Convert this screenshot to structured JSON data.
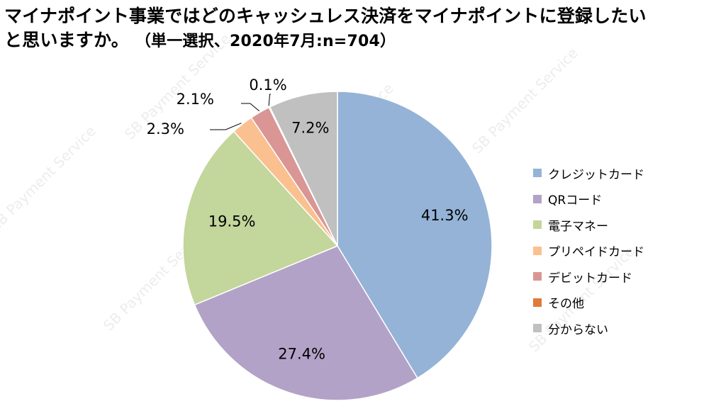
{
  "title": {
    "line1": "マイナポイント事業ではどのキャッシュレス決済をマイナポイントに登録したい",
    "line2": "と思いますか。",
    "note": "（単一選択、2020年7月:n=704）"
  },
  "watermark": "SB Payment Service",
  "chart_data": {
    "type": "pie",
    "title": "マイナポイント事業ではどのキャッシュレス決済をマイナポイントに登録したいと思いますか。（単一選択、2020年7月:n=704）",
    "legend_position": "right",
    "slices": [
      {
        "label": "クレジットカード",
        "value": 41.3,
        "display": "41.3%",
        "color": "#95b3d7"
      },
      {
        "label": "QRコード",
        "value": 27.4,
        "display": "27.4%",
        "color": "#b3a2c7"
      },
      {
        "label": "電子マネー",
        "value": 19.5,
        "display": "19.5%",
        "color": "#c3d69b"
      },
      {
        "label": "プリペイドカード",
        "value": 2.3,
        "display": "2.3%",
        "color": "#fac090"
      },
      {
        "label": "デビットカード",
        "value": 2.1,
        "display": "2.1%",
        "color": "#d99694"
      },
      {
        "label": "その他",
        "value": 0.1,
        "display": "0.1%",
        "color": "#e07b39"
      },
      {
        "label": "分からない",
        "value": 7.2,
        "display": "7.2%",
        "color": "#c0c0c0"
      }
    ]
  }
}
